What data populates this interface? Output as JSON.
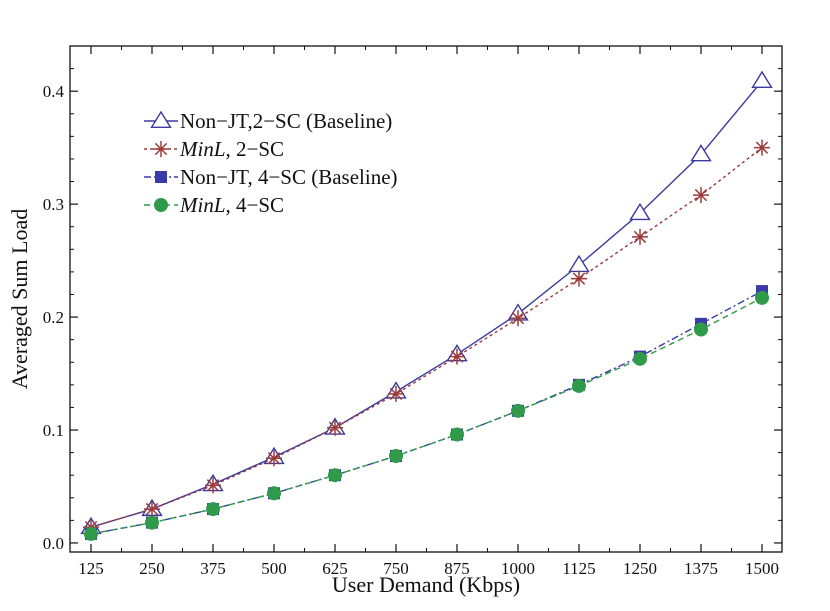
{
  "chart_data": {
    "type": "line",
    "title": "",
    "xlabel": "User Demand (Kbps)",
    "ylabel": "Averaged Sum Load",
    "x": [
      125,
      250,
      375,
      500,
      625,
      750,
      875,
      1000,
      1125,
      1250,
      1375,
      1500
    ],
    "ylim": [
      -0.008,
      0.44
    ],
    "yticks": [
      0.0,
      0.1,
      0.2,
      0.3,
      0.4
    ],
    "ytick_labels": [
      "0.0",
      "0.1",
      "0.2",
      "0.3",
      "0.4"
    ],
    "xtick_labels": [
      "125",
      "250",
      "375",
      "500",
      "625",
      "750",
      "875",
      "1000",
      "1125",
      "1250",
      "1375",
      "1500"
    ],
    "grid": false,
    "legend_position": "top-left",
    "series": [
      {
        "legend_name": "Non−JT,2−SC (Baseline)",
        "legend_parts": [
          {
            "text": "Non−JT,2−SC (Baseline)",
            "italic": false
          }
        ],
        "color": "#3a3a9e",
        "marker": "triangle-open",
        "dash": "solid",
        "values": [
          0.014,
          0.03,
          0.052,
          0.076,
          0.102,
          0.134,
          0.167,
          0.203,
          0.246,
          0.292,
          0.344,
          0.409
        ]
      },
      {
        "legend_name": "MinL, 2−SC",
        "legend_parts": [
          {
            "text": "MinL",
            "italic": true
          },
          {
            "text": ", 2−SC",
            "italic": false
          }
        ],
        "color": "#9b3a3a",
        "marker": "asterisk",
        "dash": "dotted",
        "values": [
          0.014,
          0.03,
          0.051,
          0.075,
          0.102,
          0.132,
          0.165,
          0.199,
          0.234,
          0.271,
          0.308,
          0.35
        ]
      },
      {
        "legend_name": "Non−JT, 4−SC (Baseline)",
        "legend_parts": [
          {
            "text": "Non−JT, 4−SC (Baseline)",
            "italic": false
          }
        ],
        "color": "#3a3aa8",
        "marker": "square-filled",
        "dash": "dashdot",
        "values": [
          0.008,
          0.018,
          0.03,
          0.044,
          0.06,
          0.077,
          0.096,
          0.117,
          0.14,
          0.165,
          0.194,
          0.223
        ]
      },
      {
        "legend_name": "MinL, 4−SC",
        "legend_parts": [
          {
            "text": "MinL",
            "italic": true
          },
          {
            "text": ", 4−SC",
            "italic": false
          }
        ],
        "color": "#2e9a4a",
        "marker": "circle-filled",
        "dash": "dashed",
        "values": [
          0.008,
          0.018,
          0.03,
          0.044,
          0.06,
          0.077,
          0.096,
          0.117,
          0.139,
          0.163,
          0.189,
          0.217
        ]
      }
    ]
  }
}
